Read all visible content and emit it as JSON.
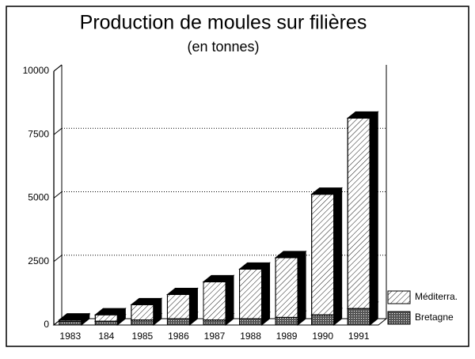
{
  "chart_data": {
    "type": "bar3d-stacked",
    "title": "Production de moules sur filières",
    "subtitle": "(en tonnes)",
    "categories": [
      "1983",
      "184",
      "1985",
      "1986",
      "1987",
      "1988",
      "1989",
      "1990",
      "1991"
    ],
    "series": [
      {
        "name": "Bretagne",
        "color": "#555555",
        "values": [
          150,
          150,
          200,
          250,
          200,
          250,
          300,
          400,
          650
        ]
      },
      {
        "name": "Méditerra.",
        "color": "#ffffff",
        "values": [
          50,
          250,
          600,
          950,
          1500,
          1950,
          2350,
          4750,
          7500
        ]
      }
    ],
    "ylim": [
      0,
      10000
    ],
    "yticks": [
      0,
      2500,
      5000,
      7500,
      10000
    ],
    "grid": true,
    "legend": "bottom-right"
  }
}
